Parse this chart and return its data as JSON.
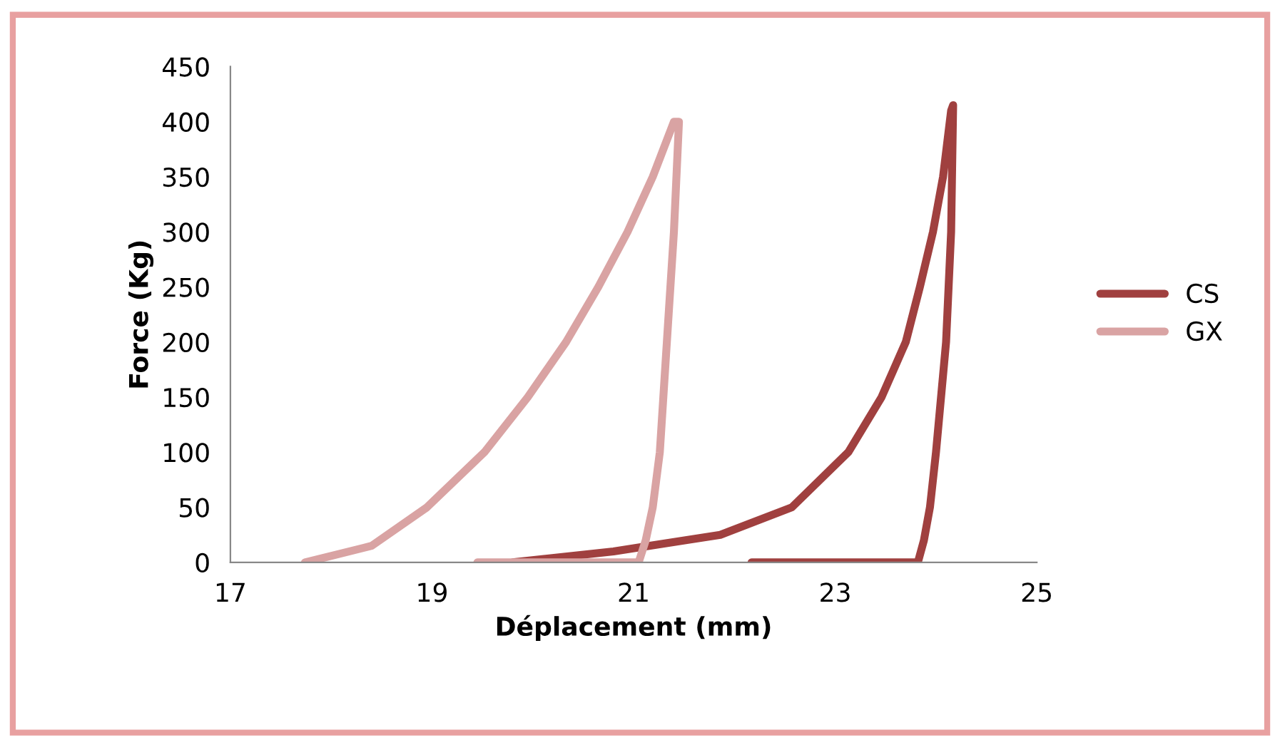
{
  "chart_data": {
    "type": "line",
    "xlabel": "Déplacement (mm)",
    "ylabel": "Force (Kg)",
    "xlim": [
      17,
      25
    ],
    "xticks": [
      17,
      19,
      21,
      23,
      25
    ],
    "ylim": [
      0,
      450
    ],
    "yticks": [
      0,
      50,
      100,
      150,
      200,
      250,
      300,
      350,
      400,
      450
    ],
    "grid": false,
    "legend": "right",
    "marker": "none",
    "line_style": "solid",
    "series": [
      {
        "name": "CS",
        "color": "#a0403f",
        "x": [
          19.8,
          20.8,
          21.86,
          22.57,
          23.13,
          23.46,
          23.7,
          23.84,
          23.97,
          24.07,
          24.15,
          24.17,
          24.15,
          24.1,
          24.0,
          23.94,
          23.88,
          23.82,
          22.17
        ],
        "values": [
          0,
          10,
          25,
          50,
          100,
          150,
          200,
          250,
          300,
          350,
          410,
          415,
          300,
          200,
          100,
          50,
          20,
          0,
          0
        ]
      },
      {
        "name": "GX",
        "color": "#d9a3a3",
        "x": [
          17.74,
          18.4,
          18.95,
          19.52,
          19.95,
          20.33,
          20.65,
          20.94,
          21.19,
          21.4,
          21.45,
          21.4,
          21.33,
          21.26,
          21.19,
          21.12,
          21.05,
          19.45
        ],
        "values": [
          0,
          15,
          50,
          100,
          150,
          200,
          250,
          300,
          350,
          400,
          400,
          300,
          200,
          100,
          50,
          20,
          0,
          0
        ]
      }
    ]
  }
}
